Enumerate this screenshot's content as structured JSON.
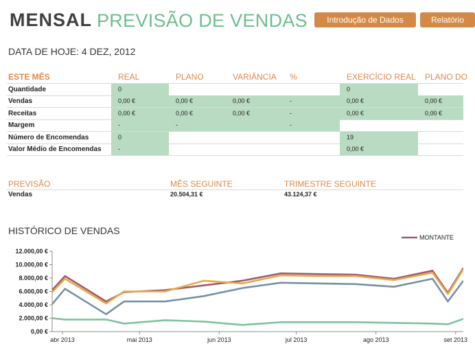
{
  "header": {
    "title_main": "MENSAL",
    "title_sub": "PREVISÃO DE VENDAS",
    "buttons": [
      "Introdução  de Dados",
      "Relatório"
    ]
  },
  "date_line": "DATA DE HOJE: 4 DEZ, 2012",
  "table": {
    "headers": [
      "ESTE MÊS",
      "REAL",
      "PLANO",
      "VARIÂNCIA",
      "%",
      "EXERCÍCIO REAL",
      "PLANO DO"
    ],
    "rows": [
      {
        "label": "Quantidade",
        "cells": [
          "0",
          "",
          "",
          "",
          "0",
          ""
        ]
      },
      {
        "label": "Vendas",
        "cells": [
          "0,00 €",
          "0,00 €",
          "0,00 €",
          "-",
          "0,00 €",
          "0,00 €"
        ]
      },
      {
        "label": "Receitas",
        "cells": [
          "0,00 €",
          "0,00 €",
          "0,00 €",
          "-",
          "0,00 €",
          "0,00 €"
        ]
      },
      {
        "label": "Margem",
        "cells": [
          "-",
          "-",
          "",
          "-",
          "",
          ""
        ]
      },
      {
        "label": "Número de Encomendas",
        "cells": [
          "0",
          "",
          "",
          "",
          "19",
          ""
        ]
      },
      {
        "label": "Valor Médio de Encomendas",
        "cells": [
          "-",
          "",
          "",
          "",
          "0,00 €",
          ""
        ]
      }
    ]
  },
  "forecast": {
    "headers": [
      "PREVISÃO",
      "MÊS SEGUINTE",
      "TRIMESTRE SEGUINTE"
    ],
    "row_label": "Vendas",
    "values": [
      "20.504,31 €",
      "43.124,37 €"
    ]
  },
  "chart_title": "HISTÓRICO DE VENDAS",
  "chart_data": {
    "type": "line",
    "legend": "MONTANTE",
    "legend_position": "top-right",
    "y_ticks": [
      "0,00 €",
      "2.000,00 €",
      "4.000,00 €",
      "6.000,00 €",
      "8.000,00 €",
      "10.000,00 €",
      "12.000,00 €"
    ],
    "ylim": [
      0,
      12000
    ],
    "x_ticks": [
      "abr 2013",
      "mai 2013",
      "jun 2013",
      "jul 2013",
      "ago 2013",
      "set 2013"
    ],
    "x_tick_days": [
      0,
      30,
      61,
      91,
      122,
      153
    ],
    "xlim": [
      -4,
      156
    ],
    "series": [
      {
        "name": "MONTANTE",
        "color": "#9e5c6b",
        "x": [
          -4,
          1,
          17,
          24,
          40,
          55,
          70,
          85,
          99,
          114,
          129,
          144,
          150,
          156
        ],
        "y": [
          6200,
          8300,
          4500,
          5900,
          6200,
          6900,
          7600,
          8700,
          8600,
          8500,
          7900,
          9100,
          5800,
          9500
        ]
      },
      {
        "name": "",
        "color": "#e9a94a",
        "x": [
          -4,
          1,
          17,
          24,
          40,
          55,
          70,
          85,
          99,
          114,
          129,
          144,
          150,
          156
        ],
        "y": [
          5900,
          7900,
          4200,
          6000,
          6000,
          7600,
          7200,
          8400,
          8300,
          8300,
          7700,
          8800,
          5600,
          9300
        ]
      },
      {
        "name": "",
        "color": "#7590a4",
        "x": [
          -4,
          1,
          17,
          24,
          40,
          55,
          70,
          85,
          99,
          114,
          129,
          144,
          150,
          156
        ],
        "y": [
          4100,
          6400,
          2600,
          4500,
          4500,
          5300,
          6500,
          7300,
          7200,
          7100,
          6700,
          7900,
          4500,
          7600
        ]
      },
      {
        "name": "",
        "color": "#7ec29a",
        "x": [
          -4,
          1,
          17,
          24,
          40,
          55,
          70,
          85,
          99,
          114,
          129,
          144,
          150,
          156
        ],
        "y": [
          2000,
          1800,
          1800,
          1200,
          1700,
          1500,
          1000,
          1400,
          1400,
          1400,
          1300,
          1200,
          1100,
          1900
        ]
      }
    ]
  }
}
